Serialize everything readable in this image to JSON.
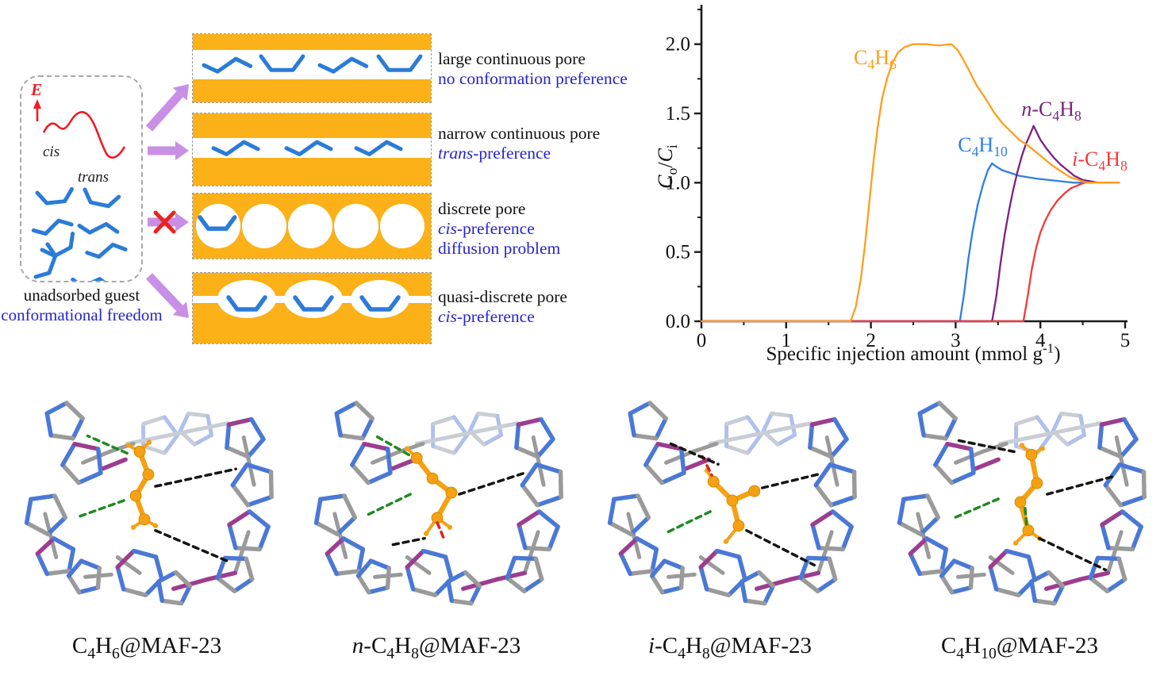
{
  "schematic": {
    "energy_label": "E",
    "cis_label": "cis",
    "trans_label": "trans",
    "caption_line1": "unadsorbed guest",
    "caption_line2": "conformational freedom",
    "panels": [
      {
        "name": "large continuous pore",
        "notes": [
          "no conformation preference"
        ]
      },
      {
        "name": "narrow continuous pore",
        "notes": [
          "*trans*-preference"
        ]
      },
      {
        "name": "discrete pore",
        "notes": [
          "*cis*-preference",
          "diffusion problem"
        ]
      },
      {
        "name": "quasi-discrete pore",
        "notes": [
          "*cis*-preference"
        ]
      }
    ],
    "colors": {
      "pore_orange": "#fbb117",
      "arrow_purple": "#c98fe5",
      "guest_blue": "#2b7bd9",
      "energy_red": "#ee1c25",
      "cross_red": "#e8251f",
      "note_blue": "#2525ce"
    }
  },
  "chart_data": {
    "type": "line",
    "title": "",
    "xlabel_rich": "Specific injection amount (mmol g^-1^)",
    "ylabel_rich": "*C*~o~/*C*~i~",
    "xlim": [
      0,
      5
    ],
    "ylim": [
      0,
      2.25
    ],
    "grid": false,
    "legend": "inline-labels",
    "x_major_ticks": [
      0,
      1,
      2,
      3,
      4,
      5
    ],
    "x_tick_labels": [
      "0",
      "1",
      "2",
      "3",
      "4",
      "5"
    ],
    "x_minor_step": 0.5,
    "y_major_ticks": [
      0,
      0.5,
      1,
      1.5,
      2
    ],
    "y_tick_labels": [
      "0.0",
      "0.5",
      "1.0",
      "1.5",
      "2.0"
    ],
    "y_minor_step": 0.25,
    "axis_color": "#1a1a1a",
    "draw_order": [
      1,
      2,
      3,
      0
    ],
    "series": [
      {
        "name_rich": "C~4~H~6~",
        "color": "#ff9d1c",
        "label_pos": {
          "x": 2.05,
          "y": 1.9
        },
        "points": [
          [
            0,
            0
          ],
          [
            1.76,
            0
          ],
          [
            1.82,
            0.1
          ],
          [
            1.88,
            0.3
          ],
          [
            1.93,
            0.55
          ],
          [
            1.98,
            0.85
          ],
          [
            2.03,
            1.15
          ],
          [
            2.08,
            1.4
          ],
          [
            2.13,
            1.6
          ],
          [
            2.19,
            1.75
          ],
          [
            2.25,
            1.86
          ],
          [
            2.32,
            1.94
          ],
          [
            2.4,
            1.98
          ],
          [
            2.5,
            2.0
          ],
          [
            2.65,
            2.0
          ],
          [
            2.8,
            1.99
          ],
          [
            2.95,
            2.0
          ],
          [
            3.02,
            1.96
          ],
          [
            3.08,
            1.9
          ],
          [
            3.15,
            1.82
          ],
          [
            3.25,
            1.7
          ],
          [
            3.35,
            1.61
          ],
          [
            3.45,
            1.51
          ],
          [
            3.55,
            1.43
          ],
          [
            3.65,
            1.37
          ],
          [
            3.75,
            1.31
          ],
          [
            3.85,
            1.27
          ],
          [
            3.95,
            1.22
          ],
          [
            4.05,
            1.17
          ],
          [
            4.15,
            1.12
          ],
          [
            4.25,
            1.08
          ],
          [
            4.35,
            1.04
          ],
          [
            4.45,
            1.02
          ],
          [
            4.55,
            1.0
          ],
          [
            4.93,
            1.0
          ]
        ]
      },
      {
        "name_rich": "C~4~H~10~",
        "color": "#2e7fe0",
        "label_pos": {
          "x": 3.32,
          "y": 1.27
        },
        "points": [
          [
            0,
            0
          ],
          [
            3.05,
            0
          ],
          [
            3.1,
            0.2
          ],
          [
            3.15,
            0.45
          ],
          [
            3.2,
            0.65
          ],
          [
            3.26,
            0.84
          ],
          [
            3.32,
            0.98
          ],
          [
            3.38,
            1.09
          ],
          [
            3.43,
            1.14
          ],
          [
            3.47,
            1.12
          ],
          [
            3.55,
            1.09
          ],
          [
            3.65,
            1.07
          ],
          [
            3.75,
            1.05
          ],
          [
            3.85,
            1.04
          ],
          [
            3.95,
            1.03
          ],
          [
            4.1,
            1.02
          ],
          [
            4.25,
            1.01
          ],
          [
            4.4,
            1.0
          ],
          [
            4.6,
            1.0
          ]
        ]
      },
      {
        "name_rich": "*n*-C~4~H~8~",
        "color": "#7d2181",
        "label_pos": {
          "x": 4.13,
          "y": 1.53
        },
        "points": [
          [
            0,
            0
          ],
          [
            3.43,
            0
          ],
          [
            3.48,
            0.18
          ],
          [
            3.53,
            0.42
          ],
          [
            3.58,
            0.63
          ],
          [
            3.63,
            0.8
          ],
          [
            3.68,
            0.95
          ],
          [
            3.73,
            1.08
          ],
          [
            3.78,
            1.19
          ],
          [
            3.83,
            1.28
          ],
          [
            3.88,
            1.35
          ],
          [
            3.92,
            1.41
          ],
          [
            3.96,
            1.36
          ],
          [
            4.0,
            1.31
          ],
          [
            4.08,
            1.24
          ],
          [
            4.16,
            1.18
          ],
          [
            4.24,
            1.13
          ],
          [
            4.32,
            1.09
          ],
          [
            4.4,
            1.05
          ],
          [
            4.5,
            1.02
          ],
          [
            4.6,
            1.01
          ],
          [
            4.68,
            1.0
          ]
        ]
      },
      {
        "name_rich": "*i*-C~4~H~8~",
        "color": "#f4393b",
        "label_pos": {
          "x": 4.7,
          "y": 1.17
        },
        "points": [
          [
            0,
            0
          ],
          [
            3.8,
            0
          ],
          [
            3.85,
            0.18
          ],
          [
            3.9,
            0.38
          ],
          [
            3.95,
            0.53
          ],
          [
            4.0,
            0.64
          ],
          [
            4.06,
            0.73
          ],
          [
            4.12,
            0.8
          ],
          [
            4.2,
            0.87
          ],
          [
            4.28,
            0.92
          ],
          [
            4.36,
            0.96
          ],
          [
            4.44,
            0.98
          ],
          [
            4.52,
            1.0
          ],
          [
            4.93,
            1.0
          ]
        ]
      }
    ]
  },
  "structures": {
    "captions_rich": [
      "C~4~H~6~@MAF-23",
      "*n*-C~4~H~8~@MAF-23",
      "*i*-C~4~H~8~@MAF-23",
      "C~4~H~10~@MAF-23"
    ],
    "colors": {
      "host_nitrogen": "#4a78d6",
      "host_carbon": "#9a9a9a",
      "host_zinc": "#9c3d8f",
      "guest_orange": "#f5a113",
      "hbond_green": "#1f8a1f",
      "contact_black": "#141414",
      "contact_red": "#e02020"
    }
  }
}
